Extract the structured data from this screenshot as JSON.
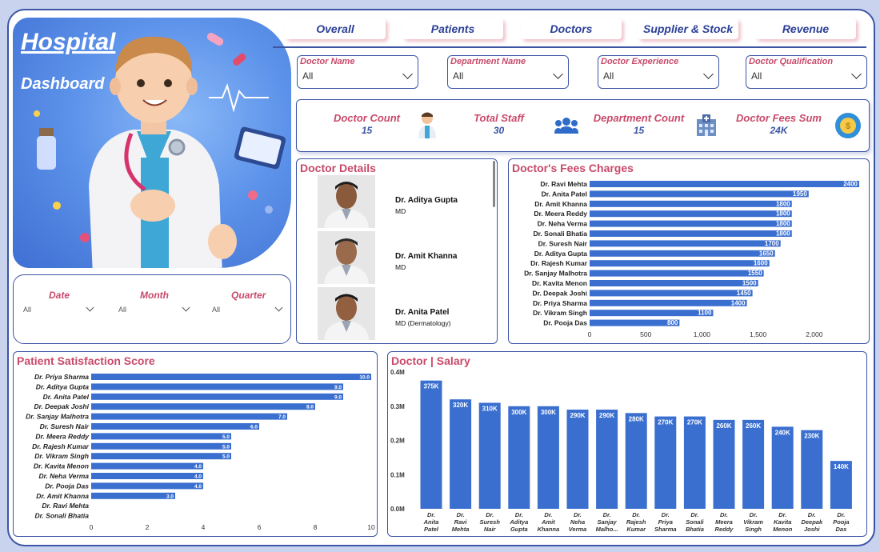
{
  "hero": {
    "title": "Hospital",
    "subtitle": "Dashboard"
  },
  "nav": [
    "Overall",
    "Patients",
    "Doctors",
    "Supplier & Stock",
    "Revenue"
  ],
  "filters": [
    {
      "label": "Doctor Name",
      "value": "All"
    },
    {
      "label": "Department Name",
      "value": "All"
    },
    {
      "label": "Doctor Experience",
      "value": "All"
    },
    {
      "label": "Doctor Qualification",
      "value": "All"
    }
  ],
  "kpis": [
    {
      "label": "Doctor Count",
      "value": "15",
      "icon": "doctor-icon"
    },
    {
      "label": "Total Staff",
      "value": "30",
      "icon": "staff-icon"
    },
    {
      "label": "Department Count",
      "value": "15",
      "icon": "hospital-icon"
    },
    {
      "label": "Doctor Fees Sum",
      "value": "24K",
      "icon": "coin-icon"
    }
  ],
  "date_filters": [
    {
      "label": "Date",
      "value": "All"
    },
    {
      "label": "Month",
      "value": "All"
    },
    {
      "label": "Quarter",
      "value": "All"
    }
  ],
  "doctor_details": {
    "title": "Doctor Details",
    "rows": [
      {
        "name": "Dr. Aditya Gupta",
        "qualification": "MD"
      },
      {
        "name": "Dr. Amit Khanna",
        "qualification": "MD"
      },
      {
        "name": "Dr. Anita Patel",
        "qualification": "MD (Dermatology)"
      }
    ]
  },
  "chart_data": [
    {
      "id": "fees",
      "type": "bar",
      "orientation": "horizontal",
      "title": "Doctor's Fees Charges",
      "categories": [
        "Dr. Ravi Mehta",
        "Dr. Anita Patel",
        "Dr. Amit Khanna",
        "Dr. Meera Reddy",
        "Dr. Neha Verma",
        "Dr. Sonali Bhatia",
        "Dr. Suresh Nair",
        "Dr. Aditya Gupta",
        "Dr. Rajesh Kumar",
        "Dr. Sanjay Malhotra",
        "Dr. Kavita Menon",
        "Dr. Deepak Joshi",
        "Dr. Priya Sharma",
        "Dr. Vikram Singh",
        "Dr. Pooja Das"
      ],
      "values": [
        2400,
        1950,
        1800,
        1800,
        1800,
        1800,
        1700,
        1650,
        1600,
        1550,
        1500,
        1450,
        1400,
        1100,
        800
      ],
      "value_labels": [
        "2400",
        "1950",
        "1800",
        "1800",
        "1800",
        "1800",
        "1700",
        "1650",
        "1600",
        "1550",
        "1500",
        "1450",
        "1400",
        "1100",
        "800"
      ],
      "xlim": [
        0,
        2400
      ],
      "x_ticks": [
        0,
        500,
        1000,
        1500,
        2000
      ],
      "x_tick_labels": [
        "0",
        "500",
        "1,000",
        "1,500",
        "2,000"
      ],
      "color": "#3a6fd0"
    },
    {
      "id": "satisfaction",
      "type": "bar",
      "orientation": "horizontal",
      "title": "Patient Satisfaction Score",
      "categories": [
        "Dr. Priya Sharma",
        "Dr. Aditya Gupta",
        "Dr. Anita Patel",
        "Dr. Deepak Joshi",
        "Dr. Sanjay Malhotra",
        "Dr. Suresh Nair",
        "Dr. Meera Reddy",
        "Dr. Rajesh Kumar",
        "Dr. Vikram Singh",
        "Dr. Kavita Menon",
        "Dr. Neha Verma",
        "Dr. Pooja Das",
        "Dr. Amit Khanna",
        "Dr. Ravi Mehta",
        "Dr. Sonali Bhatia"
      ],
      "values": [
        10,
        9,
        9,
        8,
        7,
        6,
        5,
        5,
        5,
        4,
        4,
        4,
        3,
        0,
        0
      ],
      "value_labels": [
        "10.0",
        "9.0",
        "9.0",
        "8.0",
        "7.0",
        "6.0",
        "5.0",
        "5.0",
        "5.0",
        "4.0",
        "4.0",
        "4.0",
        "3.0",
        "",
        ""
      ],
      "xlim": [
        0,
        10
      ],
      "x_ticks": [
        0,
        2,
        4,
        6,
        8,
        10
      ],
      "x_tick_labels": [
        "0",
        "2",
        "4",
        "6",
        "8",
        "10"
      ],
      "color": "#3a6fd0"
    },
    {
      "id": "salary",
      "type": "bar",
      "orientation": "vertical",
      "title": "Doctor | Salary",
      "categories": [
        "Dr. Anita Patel",
        "Dr. Ravi Mehta",
        "Dr. Suresh Nair",
        "Dr. Aditya Gupta",
        "Dr. Amit Khanna",
        "Dr. Neha Verma",
        "Dr. Sanjay Malho...",
        "Dr. Rajesh Kumar",
        "Dr. Priya Sharma",
        "Dr. Sonali Bhatia",
        "Dr. Meera Reddy",
        "Dr. Vikram Singh",
        "Dr. Kavita Menon",
        "Dr. Deepak Joshi",
        "Dr. Pooja Das"
      ],
      "values": [
        375000,
        320000,
        310000,
        300000,
        300000,
        290000,
        290000,
        280000,
        270000,
        270000,
        260000,
        260000,
        240000,
        230000,
        140000
      ],
      "value_labels": [
        "375K",
        "320K",
        "310K",
        "300K",
        "300K",
        "290K",
        "290K",
        "280K",
        "270K",
        "270K",
        "260K",
        "260K",
        "240K",
        "230K",
        "140K"
      ],
      "ylim": [
        0,
        400000
      ],
      "y_ticks": [
        0,
        100000,
        200000,
        300000,
        400000
      ],
      "y_tick_labels": [
        "0.0M",
        "0.1M",
        "0.2M",
        "0.3M",
        "0.4M"
      ],
      "color": "#3a6fd0"
    }
  ]
}
